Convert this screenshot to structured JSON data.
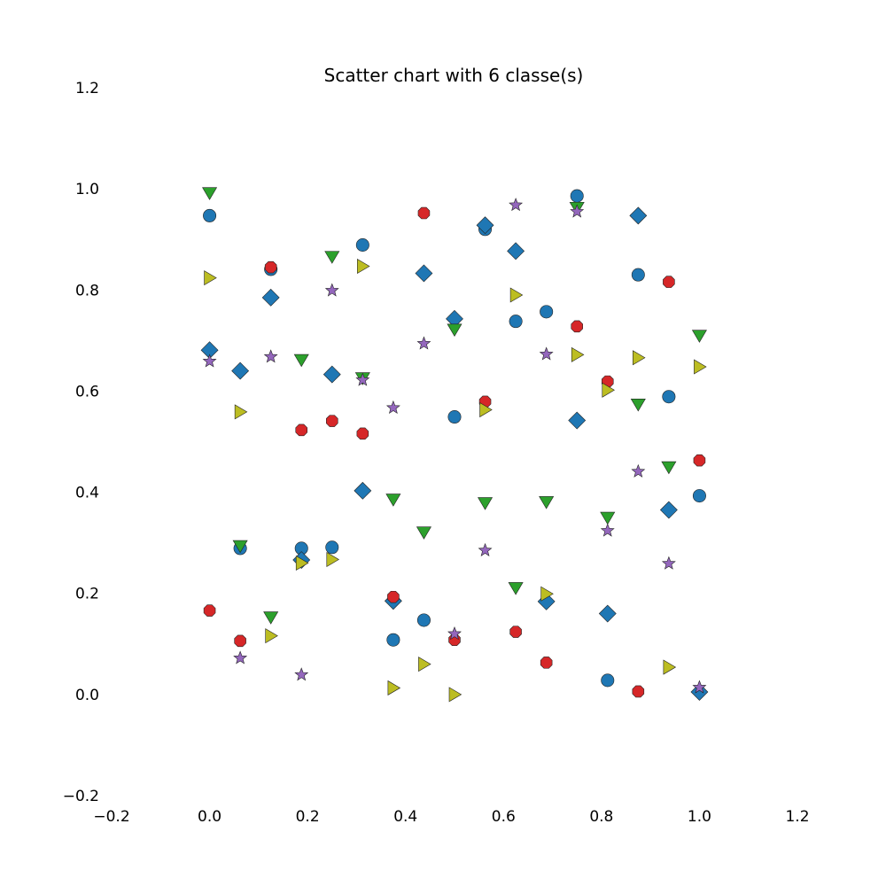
{
  "chart_data": {
    "type": "scatter",
    "title": "Scatter chart with 6 classe(s)",
    "xlabel": "",
    "ylabel": "",
    "xlim": [
      -0.2,
      1.2
    ],
    "ylim": [
      -0.2,
      1.2
    ],
    "x_ticks": [
      "−0.2",
      "0.0",
      "0.2",
      "0.4",
      "0.6",
      "0.8",
      "1.0",
      "1.2"
    ],
    "y_ticks": [
      "−0.2",
      "0.0",
      "0.2",
      "0.4",
      "0.6",
      "0.8",
      "1.0",
      "1.2"
    ],
    "grid": false,
    "axes_visible": false,
    "series": [
      {
        "marker": "circle",
        "color": "#1f77b4",
        "points": [
          [
            0.0,
            0.947
          ],
          [
            0.0625,
            0.289
          ],
          [
            0.125,
            0.841
          ],
          [
            0.1875,
            0.289
          ],
          [
            0.25,
            0.291
          ],
          [
            0.3125,
            0.889
          ],
          [
            0.375,
            0.108
          ],
          [
            0.4375,
            0.147
          ],
          [
            0.5,
            0.549
          ],
          [
            0.5625,
            0.92
          ],
          [
            0.625,
            0.738
          ],
          [
            0.6875,
            0.757
          ],
          [
            0.75,
            0.986
          ],
          [
            0.8125,
            0.028
          ],
          [
            0.875,
            0.83
          ],
          [
            0.9375,
            0.589
          ],
          [
            1.0,
            0.393
          ]
        ]
      },
      {
        "marker": "diamond",
        "color": "#1f77b4",
        "points": [
          [
            0.0,
            0.681
          ],
          [
            0.0625,
            0.64
          ],
          [
            0.125,
            0.785
          ],
          [
            0.1875,
            0.266
          ],
          [
            0.25,
            0.633
          ],
          [
            0.3125,
            0.403
          ],
          [
            0.375,
            0.185
          ],
          [
            0.4375,
            0.833
          ],
          [
            0.5,
            0.743
          ],
          [
            0.5625,
            0.928
          ],
          [
            0.625,
            0.877
          ],
          [
            0.6875,
            0.184
          ],
          [
            0.75,
            0.542
          ],
          [
            0.8125,
            0.16
          ],
          [
            0.875,
            0.947
          ],
          [
            0.9375,
            0.365
          ],
          [
            1.0,
            0.005
          ]
        ]
      },
      {
        "marker": "octagon",
        "color": "#d62728",
        "points": [
          [
            0.0,
            0.166
          ],
          [
            0.0625,
            0.106
          ],
          [
            0.125,
            0.845
          ],
          [
            0.1875,
            0.523
          ],
          [
            0.25,
            0.541
          ],
          [
            0.3125,
            0.516
          ],
          [
            0.375,
            0.193
          ],
          [
            0.4375,
            0.952
          ],
          [
            0.5,
            0.108
          ],
          [
            0.5625,
            0.579
          ],
          [
            0.625,
            0.124
          ],
          [
            0.6875,
            0.063
          ],
          [
            0.75,
            0.728
          ],
          [
            0.8125,
            0.619
          ],
          [
            0.875,
            0.006
          ],
          [
            0.9375,
            0.816
          ],
          [
            1.0,
            0.463
          ]
        ]
      },
      {
        "marker": "triangle-down",
        "color": "#2ca02c",
        "points": [
          [
            0.0,
            0.992
          ],
          [
            0.0625,
            0.294
          ],
          [
            0.125,
            0.153
          ],
          [
            0.1875,
            0.662
          ],
          [
            0.25,
            0.866
          ],
          [
            0.3125,
            0.626
          ],
          [
            0.375,
            0.386
          ],
          [
            0.4375,
            0.321
          ],
          [
            0.5,
            0.722
          ],
          [
            0.5625,
            0.379
          ],
          [
            0.625,
            0.211
          ],
          [
            0.6875,
            0.381
          ],
          [
            0.75,
            0.963
          ],
          [
            0.8125,
            0.35
          ],
          [
            0.875,
            0.574
          ],
          [
            0.9375,
            0.45
          ],
          [
            1.0,
            0.71
          ]
        ]
      },
      {
        "marker": "triangle-right",
        "color": "#bcbd22",
        "points": [
          [
            0.0,
            0.824
          ],
          [
            0.0625,
            0.559
          ],
          [
            0.125,
            0.116
          ],
          [
            0.1875,
            0.26
          ],
          [
            0.25,
            0.267
          ],
          [
            0.3125,
            0.847
          ],
          [
            0.375,
            0.013
          ],
          [
            0.4375,
            0.06
          ],
          [
            0.5,
            0.0
          ],
          [
            0.5625,
            0.563
          ],
          [
            0.625,
            0.79
          ],
          [
            0.6875,
            0.199
          ],
          [
            0.75,
            0.672
          ],
          [
            0.8125,
            0.602
          ],
          [
            0.875,
            0.666
          ],
          [
            0.9375,
            0.054
          ],
          [
            1.0,
            0.648
          ]
        ]
      },
      {
        "marker": "star",
        "color": "#9467bd",
        "points": [
          [
            0.0,
            0.659
          ],
          [
            0.0625,
            0.072
          ],
          [
            0.125,
            0.668
          ],
          [
            0.1875,
            0.039
          ],
          [
            0.25,
            0.799
          ],
          [
            0.3125,
            0.622
          ],
          [
            0.375,
            0.567
          ],
          [
            0.4375,
            0.694
          ],
          [
            0.5,
            0.12
          ],
          [
            0.5625,
            0.285
          ],
          [
            0.625,
            0.968
          ],
          [
            0.6875,
            0.673
          ],
          [
            0.75,
            0.955
          ],
          [
            0.8125,
            0.324
          ],
          [
            0.875,
            0.441
          ],
          [
            0.9375,
            0.259
          ],
          [
            1.0,
            0.014
          ]
        ]
      }
    ]
  }
}
